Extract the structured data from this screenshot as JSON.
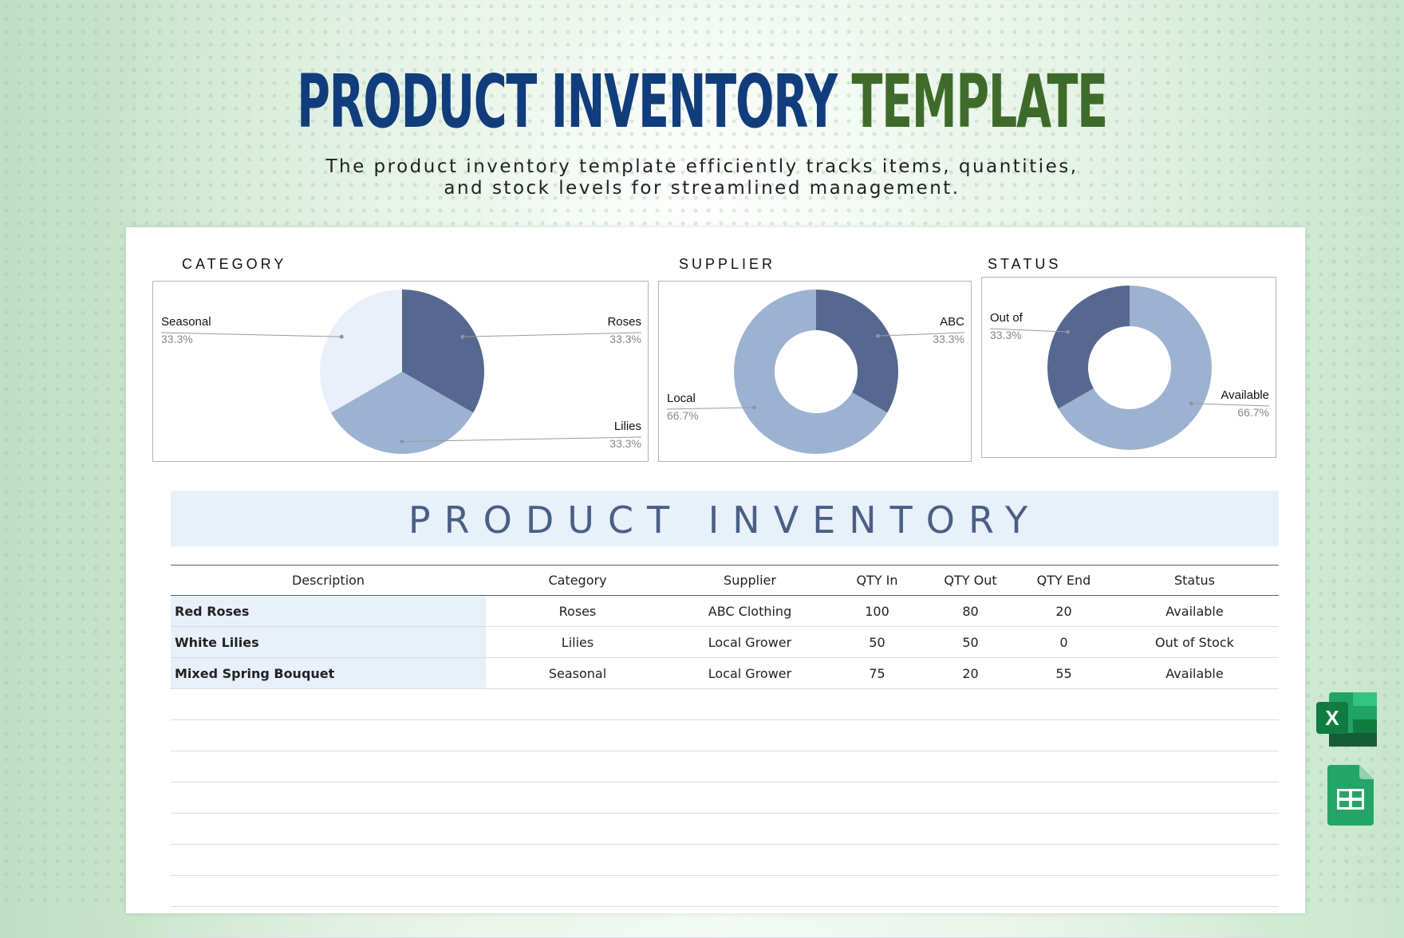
{
  "header": {
    "title_part1": "PRODUCT INVENTORY",
    "title_part2": "TEMPLATE",
    "subtitle_line1": "The product inventory template efficiently tracks items, quantities,",
    "subtitle_line2": "and stock levels for streamlined management."
  },
  "charts": {
    "category_label": "CATEGORY",
    "supplier_label": "SUPPLIER",
    "status_label": "STATUS"
  },
  "chart_data": [
    {
      "type": "pie",
      "title": "CATEGORY",
      "categories": [
        "Roses",
        "Lilies",
        "Seasonal"
      ],
      "values": [
        33.3,
        33.3,
        33.3
      ],
      "labels": [
        "33.3%",
        "33.3%",
        "33.3%"
      ],
      "colors": [
        "#56688f",
        "#9db2d1",
        "#e9f0fa"
      ]
    },
    {
      "type": "pie",
      "title": "SUPPLIER",
      "donut": true,
      "categories": [
        "ABC",
        "Local"
      ],
      "values": [
        33.3,
        66.7
      ],
      "labels": [
        "33.3%",
        "66.7%"
      ],
      "colors": [
        "#56688f",
        "#9db2d1"
      ]
    },
    {
      "type": "pie",
      "title": "STATUS",
      "donut": true,
      "categories": [
        "Available",
        "Out of"
      ],
      "values": [
        66.7,
        33.3
      ],
      "labels": [
        "66.7%",
        "33.3%"
      ],
      "colors": [
        "#9db2d1",
        "#56688f"
      ]
    }
  ],
  "inventory": {
    "title": "PRODUCT INVENTORY",
    "headers": [
      "Description",
      "Category",
      "Supplier",
      "QTY In",
      "QTY Out",
      "QTY End",
      "Status"
    ],
    "rows": [
      [
        "Red Roses",
        "Roses",
        "ABC Clothing",
        "100",
        "80",
        "20",
        "Available"
      ],
      [
        "White Lilies",
        "Lilies",
        "Local Grower",
        "50",
        "50",
        "0",
        "Out of Stock"
      ],
      [
        "Mixed Spring Bouquet",
        "Seasonal",
        "Local Grower",
        "75",
        "20",
        "55",
        "Available"
      ]
    ],
    "empty_rows": 8
  },
  "icons": {
    "excel": "excel-icon",
    "sheets": "google-sheets-icon",
    "excel_letter": "X"
  }
}
